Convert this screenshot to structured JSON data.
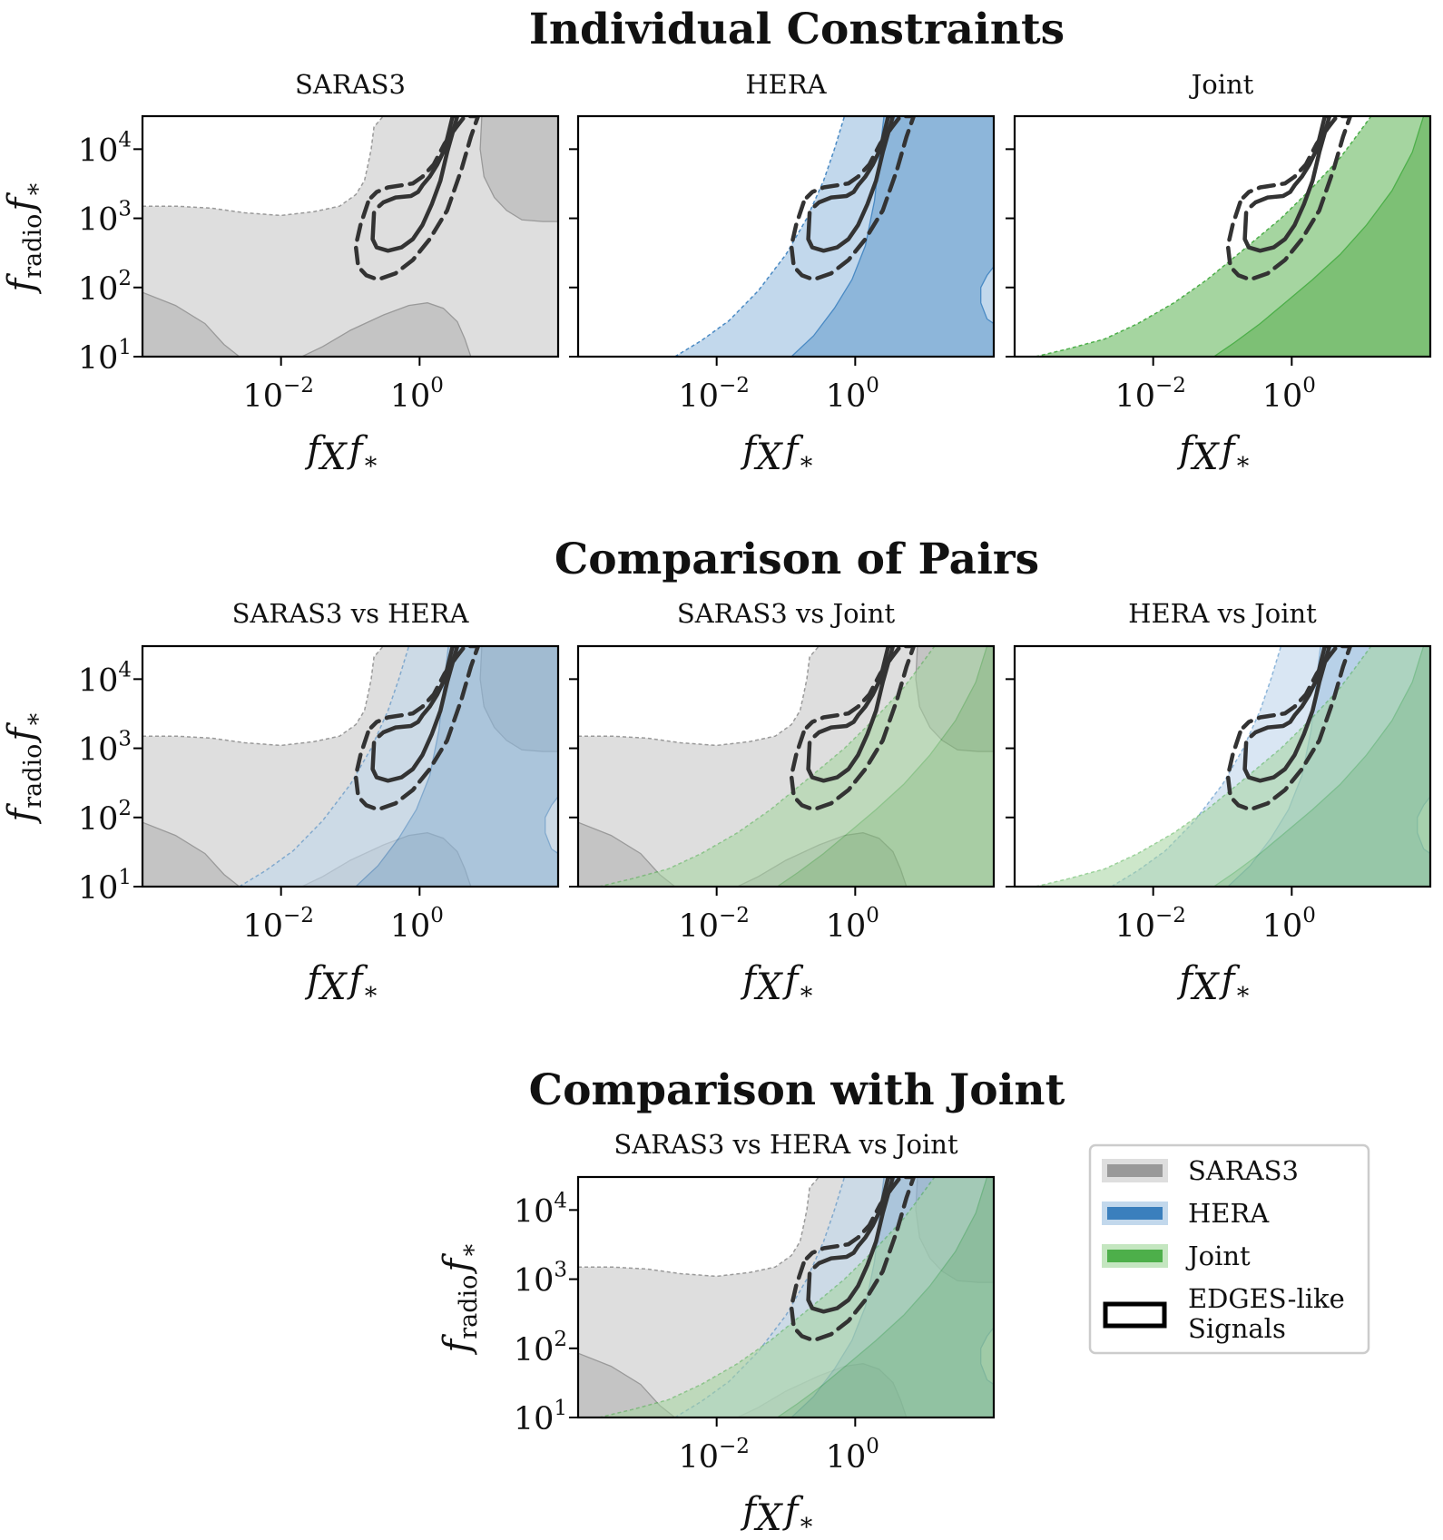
{
  "chart_data": {
    "type": "area",
    "sections": [
      {
        "title": "Individual Constraints",
        "panels": [
          {
            "title": "SARAS3",
            "layers": [
              "saras3"
            ]
          },
          {
            "title": "HERA",
            "layers": [
              "hera"
            ]
          },
          {
            "title": "Joint",
            "layers": [
              "joint"
            ]
          }
        ]
      },
      {
        "title": "Comparison of Pairs",
        "panels": [
          {
            "title": "SARAS3 vs HERA",
            "layers": [
              "saras3",
              "hera"
            ]
          },
          {
            "title": "SARAS3 vs Joint",
            "layers": [
              "saras3",
              "joint"
            ]
          },
          {
            "title": "HERA vs Joint",
            "layers": [
              "hera",
              "joint"
            ]
          }
        ]
      },
      {
        "title": "Comparison with Joint",
        "panels": [
          {
            "title": "SARAS3 vs HERA vs Joint",
            "layers": [
              "saras3",
              "hera",
              "joint"
            ]
          }
        ]
      }
    ],
    "axes": {
      "xscale": "log",
      "yscale": "log",
      "xlim": [
        0.0001,
        100
      ],
      "ylim": [
        10,
        30000
      ],
      "xticks": [
        {
          "base": "10",
          "exp": "−2",
          "value": 0.01
        },
        {
          "base": "10",
          "exp": "0",
          "value": 1
        }
      ],
      "yticks": [
        {
          "base": "10",
          "exp": "1",
          "value": 10
        },
        {
          "base": "10",
          "exp": "2",
          "value": 100
        },
        {
          "base": "10",
          "exp": "3",
          "value": 1000
        },
        {
          "base": "10",
          "exp": "4",
          "value": 10000
        }
      ],
      "xlabel": {
        "main": "f",
        "sub": "X",
        "tail": "f",
        "star": "∗"
      },
      "ylabel": {
        "main": "f",
        "sub": "radio",
        "tail": "f",
        "star": "∗"
      }
    },
    "series": [
      {
        "name": "SARAS3",
        "key": "saras3",
        "color": "#999999",
        "regions": {
          "outer_boundary": {
            "x": [
              0.0001,
              0.00031,
              0.001,
              0.003,
              0.01,
              0.03,
              0.07,
              0.12,
              0.16,
              0.18,
              0.2,
              0.22,
              0.3,
              0.6,
              1.5,
              1.5,
              100
            ],
            "y": [
              1500,
              1500,
              1400,
              1200,
              1100,
              1250,
              1500,
              2200,
              3500,
              6000,
              10000,
              21000,
              30000,
              30000,
              30000,
              30000,
              30000
            ]
          },
          "core_top_right": {
            "x": [
              7.9,
              7.5,
              8.5,
              12,
              18,
              30,
              60,
              100,
              100
            ],
            "y": [
              30000,
              10000,
              4000,
              2000,
              1300,
              950,
              900,
              900,
              30000
            ]
          },
          "core_bottom_left": {
            "x": [
              0.0001,
              0.0003,
              0.0008,
              0.0015,
              0.0025,
              0.0001
            ],
            "y": [
              85,
              55,
              30,
              15,
              10,
              10
            ]
          },
          "core_bottom_mid": {
            "x": [
              0.02,
              0.04,
              0.1,
              0.3,
              0.7,
              1.3,
              2.2,
              3.5,
              4.5,
              5.5
            ],
            "y": [
              10,
              14,
              24,
              40,
              55,
              60,
              50,
              32,
              18,
              10
            ]
          }
        }
      },
      {
        "name": "HERA",
        "key": "hera",
        "color": "#3a7fbd",
        "regions": {
          "outer_boundary": {
            "x": [
              0.0025,
              0.006,
              0.015,
              0.04,
              0.1,
              0.2,
              0.35,
              0.5,
              0.7
            ],
            "y": [
              10,
              17,
              33,
              90,
              300,
              1000,
              3500,
              10000,
              30000
            ]
          },
          "core_boundary": {
            "x": [
              0.12,
              0.25,
              0.5,
              0.9,
              1.4,
              1.9,
              2.3,
              2.6
            ],
            "y": [
              10,
              20,
              50,
              130,
              400,
              1800,
              10000,
              30000
            ]
          },
          "notch_right": {
            "x": [
              100,
              80,
              65,
              65,
              80,
              100
            ],
            "y": [
              200,
              150,
              100,
              60,
              35,
              30
            ]
          }
        }
      },
      {
        "name": "Joint",
        "key": "joint",
        "color": "#4daf4a",
        "regions": {
          "outer_boundary": {
            "x": [
              0.0002,
              0.0006,
              0.002,
              0.006,
              0.02,
              0.06,
              0.2,
              0.7,
              2,
              5,
              8,
              14
            ],
            "y": [
              10,
              13,
              18,
              30,
              60,
              130,
              350,
              1000,
              2800,
              7500,
              14000,
              30000
            ]
          },
          "core_boundary": {
            "x": [
              0.075,
              0.15,
              0.35,
              0.8,
              2,
              5,
              12,
              28,
              55,
              80
            ],
            "y": [
              10,
              16,
              30,
              60,
              130,
              300,
              800,
              2500,
              9000,
              30000
            ]
          }
        }
      },
      {
        "name": "EDGES-like Signals",
        "key": "edges",
        "color": "#333333",
        "regions": {
          "contour_solid": {
            "x": [
              0.22,
              0.21,
              0.24,
              0.35,
              0.55,
              0.8,
              1.1,
              1.5,
              2.0,
              2.5,
              3.5,
              3.0,
              2.3,
              1.8,
              1.4,
              1.1,
              0.95,
              0.75,
              0.45,
              0.3,
              0.26
            ],
            "y": [
              1200,
              500,
              380,
              340,
              380,
              500,
              800,
              1600,
              3500,
              9000,
              30000,
              30000,
              10000,
              6000,
              4000,
              3000,
              2400,
              2100,
              2000,
              1700,
              1500
            ]
          },
          "contour_dashed": {
            "x": [
              0.18,
              0.14,
              0.12,
              0.13,
              0.17,
              0.25,
              0.45,
              0.8,
              1.4,
              2.5,
              4.0,
              5.5,
              7.0,
              4.5,
              3.3,
              2.3,
              1.6,
              1.1,
              0.8,
              0.55,
              0.35,
              0.24,
              0.2
            ],
            "y": [
              1700,
              800,
              400,
              200,
              150,
              130,
              160,
              250,
              500,
              1300,
              5000,
              15000,
              30000,
              30000,
              20000,
              12000,
              6000,
              4000,
              3200,
              3000,
              2800,
              2400,
              2000
            ]
          }
        }
      }
    ],
    "legend": {
      "placement": "bottom-right",
      "entries": [
        {
          "label": "SARAS3",
          "key": "saras3"
        },
        {
          "label": "HERA",
          "key": "hera"
        },
        {
          "label": "Joint",
          "key": "joint"
        },
        {
          "label_lines": [
            "EDGES-like",
            "Signals"
          ],
          "key": "edges"
        }
      ]
    }
  }
}
